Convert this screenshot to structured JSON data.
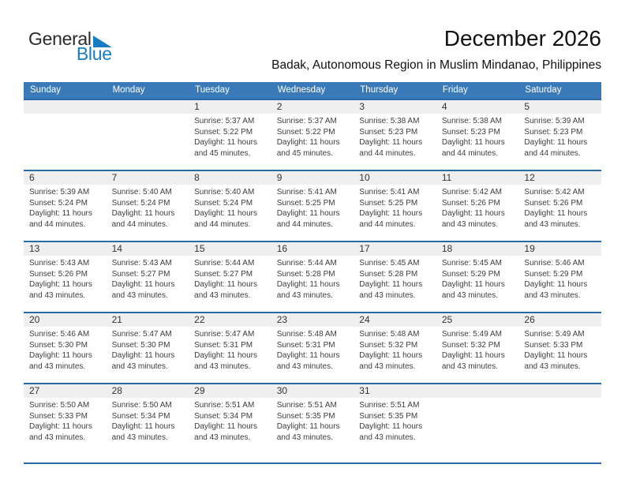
{
  "logo": {
    "line1": "General",
    "line2": "Blue",
    "triangle_icon": "blue-sail-triangle"
  },
  "page": {
    "title_month": "December 2026",
    "subtitle_location": "Badak, Autonomous Region in Muslim Mindanao, Philippines"
  },
  "colors": {
    "header_bg": "#3b7ab9",
    "row_line": "#2a6aa9",
    "band_bg": "#efefef",
    "logo_blue": "#177cc4",
    "text_dark": "#3d3d3d"
  },
  "calendar": {
    "weekday_headers": [
      "Sunday",
      "Monday",
      "Tuesday",
      "Wednesday",
      "Thursday",
      "Friday",
      "Saturday"
    ],
    "weeks": [
      {
        "days": [
          {
            "day": "",
            "sunrise": "",
            "sunset": "",
            "daylight": ""
          },
          {
            "day": "",
            "sunrise": "",
            "sunset": "",
            "daylight": ""
          },
          {
            "day": "1",
            "sunrise": "Sunrise: 5:37 AM",
            "sunset": "Sunset: 5:22 PM",
            "daylight": "Daylight: 11 hours and 45 minutes."
          },
          {
            "day": "2",
            "sunrise": "Sunrise: 5:37 AM",
            "sunset": "Sunset: 5:22 PM",
            "daylight": "Daylight: 11 hours and 45 minutes."
          },
          {
            "day": "3",
            "sunrise": "Sunrise: 5:38 AM",
            "sunset": "Sunset: 5:23 PM",
            "daylight": "Daylight: 11 hours and 44 minutes."
          },
          {
            "day": "4",
            "sunrise": "Sunrise: 5:38 AM",
            "sunset": "Sunset: 5:23 PM",
            "daylight": "Daylight: 11 hours and 44 minutes."
          },
          {
            "day": "5",
            "sunrise": "Sunrise: 5:39 AM",
            "sunset": "Sunset: 5:23 PM",
            "daylight": "Daylight: 11 hours and 44 minutes."
          }
        ]
      },
      {
        "days": [
          {
            "day": "6",
            "sunrise": "Sunrise: 5:39 AM",
            "sunset": "Sunset: 5:24 PM",
            "daylight": "Daylight: 11 hours and 44 minutes."
          },
          {
            "day": "7",
            "sunrise": "Sunrise: 5:40 AM",
            "sunset": "Sunset: 5:24 PM",
            "daylight": "Daylight: 11 hours and 44 minutes."
          },
          {
            "day": "8",
            "sunrise": "Sunrise: 5:40 AM",
            "sunset": "Sunset: 5:24 PM",
            "daylight": "Daylight: 11 hours and 44 minutes."
          },
          {
            "day": "9",
            "sunrise": "Sunrise: 5:41 AM",
            "sunset": "Sunset: 5:25 PM",
            "daylight": "Daylight: 11 hours and 44 minutes."
          },
          {
            "day": "10",
            "sunrise": "Sunrise: 5:41 AM",
            "sunset": "Sunset: 5:25 PM",
            "daylight": "Daylight: 11 hours and 44 minutes."
          },
          {
            "day": "11",
            "sunrise": "Sunrise: 5:42 AM",
            "sunset": "Sunset: 5:26 PM",
            "daylight": "Daylight: 11 hours and 43 minutes."
          },
          {
            "day": "12",
            "sunrise": "Sunrise: 5:42 AM",
            "sunset": "Sunset: 5:26 PM",
            "daylight": "Daylight: 11 hours and 43 minutes."
          }
        ]
      },
      {
        "days": [
          {
            "day": "13",
            "sunrise": "Sunrise: 5:43 AM",
            "sunset": "Sunset: 5:26 PM",
            "daylight": "Daylight: 11 hours and 43 minutes."
          },
          {
            "day": "14",
            "sunrise": "Sunrise: 5:43 AM",
            "sunset": "Sunset: 5:27 PM",
            "daylight": "Daylight: 11 hours and 43 minutes."
          },
          {
            "day": "15",
            "sunrise": "Sunrise: 5:44 AM",
            "sunset": "Sunset: 5:27 PM",
            "daylight": "Daylight: 11 hours and 43 minutes."
          },
          {
            "day": "16",
            "sunrise": "Sunrise: 5:44 AM",
            "sunset": "Sunset: 5:28 PM",
            "daylight": "Daylight: 11 hours and 43 minutes."
          },
          {
            "day": "17",
            "sunrise": "Sunrise: 5:45 AM",
            "sunset": "Sunset: 5:28 PM",
            "daylight": "Daylight: 11 hours and 43 minutes."
          },
          {
            "day": "18",
            "sunrise": "Sunrise: 5:45 AM",
            "sunset": "Sunset: 5:29 PM",
            "daylight": "Daylight: 11 hours and 43 minutes."
          },
          {
            "day": "19",
            "sunrise": "Sunrise: 5:46 AM",
            "sunset": "Sunset: 5:29 PM",
            "daylight": "Daylight: 11 hours and 43 minutes."
          }
        ]
      },
      {
        "days": [
          {
            "day": "20",
            "sunrise": "Sunrise: 5:46 AM",
            "sunset": "Sunset: 5:30 PM",
            "daylight": "Daylight: 11 hours and 43 minutes."
          },
          {
            "day": "21",
            "sunrise": "Sunrise: 5:47 AM",
            "sunset": "Sunset: 5:30 PM",
            "daylight": "Daylight: 11 hours and 43 minutes."
          },
          {
            "day": "22",
            "sunrise": "Sunrise: 5:47 AM",
            "sunset": "Sunset: 5:31 PM",
            "daylight": "Daylight: 11 hours and 43 minutes."
          },
          {
            "day": "23",
            "sunrise": "Sunrise: 5:48 AM",
            "sunset": "Sunset: 5:31 PM",
            "daylight": "Daylight: 11 hours and 43 minutes."
          },
          {
            "day": "24",
            "sunrise": "Sunrise: 5:48 AM",
            "sunset": "Sunset: 5:32 PM",
            "daylight": "Daylight: 11 hours and 43 minutes."
          },
          {
            "day": "25",
            "sunrise": "Sunrise: 5:49 AM",
            "sunset": "Sunset: 5:32 PM",
            "daylight": "Daylight: 11 hours and 43 minutes."
          },
          {
            "day": "26",
            "sunrise": "Sunrise: 5:49 AM",
            "sunset": "Sunset: 5:33 PM",
            "daylight": "Daylight: 11 hours and 43 minutes."
          }
        ]
      },
      {
        "days": [
          {
            "day": "27",
            "sunrise": "Sunrise: 5:50 AM",
            "sunset": "Sunset: 5:33 PM",
            "daylight": "Daylight: 11 hours and 43 minutes."
          },
          {
            "day": "28",
            "sunrise": "Sunrise: 5:50 AM",
            "sunset": "Sunset: 5:34 PM",
            "daylight": "Daylight: 11 hours and 43 minutes."
          },
          {
            "day": "29",
            "sunrise": "Sunrise: 5:51 AM",
            "sunset": "Sunset: 5:34 PM",
            "daylight": "Daylight: 11 hours and 43 minutes."
          },
          {
            "day": "30",
            "sunrise": "Sunrise: 5:51 AM",
            "sunset": "Sunset: 5:35 PM",
            "daylight": "Daylight: 11 hours and 43 minutes."
          },
          {
            "day": "31",
            "sunrise": "Sunrise: 5:51 AM",
            "sunset": "Sunset: 5:35 PM",
            "daylight": "Daylight: 11 hours and 43 minutes."
          },
          {
            "day": "",
            "sunrise": "",
            "sunset": "",
            "daylight": ""
          },
          {
            "day": "",
            "sunrise": "",
            "sunset": "",
            "daylight": ""
          }
        ]
      }
    ]
  }
}
